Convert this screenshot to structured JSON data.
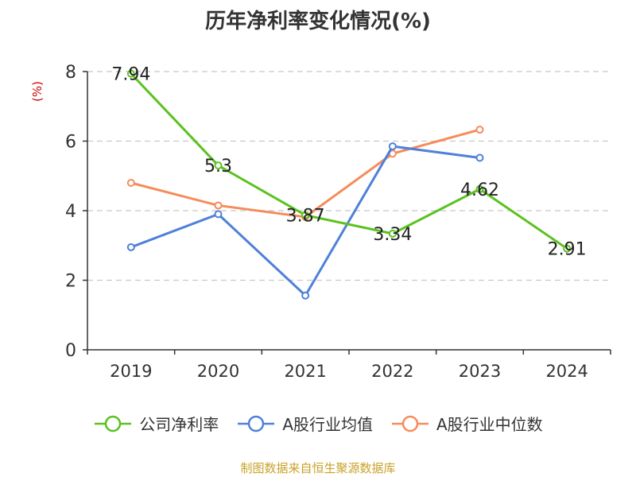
{
  "chart_data": {
    "type": "line",
    "title": "历年净利率变化情况(%)",
    "ylabel": "(%)",
    "categories": [
      "2019",
      "2020",
      "2021",
      "2022",
      "2023",
      "2024"
    ],
    "ylim": [
      0,
      8
    ],
    "yticks": [
      0,
      2,
      4,
      6,
      8
    ],
    "grid": true,
    "legend_position": "bottom",
    "series": [
      {
        "name": "公司净利率",
        "color": "#5ac21e",
        "values": [
          7.94,
          5.3,
          3.87,
          3.34,
          4.62,
          2.91
        ],
        "labels": [
          "7.94",
          "5.3",
          "3.87",
          "3.34",
          "4.62",
          "2.91"
        ]
      },
      {
        "name": "A股行业均值",
        "color": "#4f81d9",
        "values": [
          2.95,
          3.9,
          1.56,
          5.85,
          5.52,
          null
        ]
      },
      {
        "name": "A股行业中位数",
        "color": "#f58c5a",
        "values": [
          4.8,
          4.15,
          3.82,
          5.64,
          6.33,
          null
        ]
      }
    ],
    "source": "制图数据来自恒生聚源数据库"
  }
}
